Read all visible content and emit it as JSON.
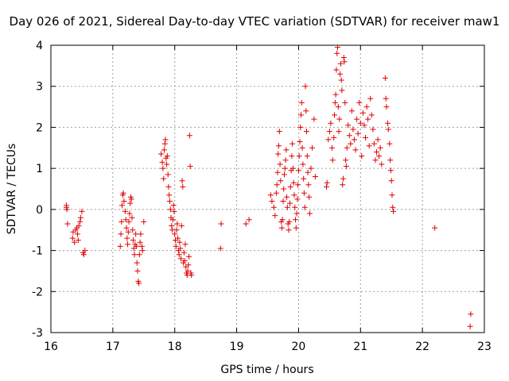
{
  "chart_data": {
    "type": "scatter",
    "title": "Day 026 of 2021, Sidereal Day-to-day VTEC variation (SDTVAR) for receiver maw1",
    "xlabel": "GPS time / hours",
    "ylabel": "SDTVAR / TECUs",
    "xlim": [
      16,
      23
    ],
    "ylim": [
      -3,
      4
    ],
    "xticks": [
      16,
      17,
      18,
      19,
      20,
      21,
      22,
      23
    ],
    "yticks": [
      -3,
      -2,
      -1,
      0,
      1,
      2,
      3,
      4
    ],
    "grid": true,
    "marker": "+",
    "marker_color": "#e00000",
    "series": [
      {
        "name": "SDTVAR",
        "points": [
          [
            16.25,
            0.05
          ],
          [
            16.26,
            0.0
          ],
          [
            16.27,
            -0.35
          ],
          [
            16.25,
            0.1
          ],
          [
            16.35,
            -0.7
          ],
          [
            16.36,
            -0.55
          ],
          [
            16.38,
            -0.8
          ],
          [
            16.4,
            -0.5
          ],
          [
            16.42,
            -0.45
          ],
          [
            16.43,
            -0.6
          ],
          [
            16.44,
            -0.75
          ],
          [
            16.45,
            -0.4
          ],
          [
            16.47,
            -0.3
          ],
          [
            16.48,
            -0.2
          ],
          [
            16.5,
            -0.05
          ],
          [
            16.52,
            -1.05
          ],
          [
            16.53,
            -1.1
          ],
          [
            16.55,
            -1.0
          ],
          [
            17.12,
            -0.9
          ],
          [
            17.13,
            -0.6
          ],
          [
            17.14,
            -0.3
          ],
          [
            17.15,
            0.1
          ],
          [
            17.16,
            0.35
          ],
          [
            17.17,
            0.4
          ],
          [
            17.18,
            0.2
          ],
          [
            17.2,
            -0.05
          ],
          [
            17.21,
            -0.25
          ],
          [
            17.22,
            -0.45
          ],
          [
            17.23,
            -0.7
          ],
          [
            17.24,
            -0.85
          ],
          [
            17.25,
            -0.55
          ],
          [
            17.26,
            -0.3
          ],
          [
            17.27,
            -0.1
          ],
          [
            17.28,
            0.15
          ],
          [
            17.29,
            0.3
          ],
          [
            17.3,
            0.25
          ],
          [
            17.31,
            -0.2
          ],
          [
            17.32,
            -0.5
          ],
          [
            17.33,
            -0.75
          ],
          [
            17.34,
            -0.95
          ],
          [
            17.35,
            -1.1
          ],
          [
            17.36,
            -0.85
          ],
          [
            17.37,
            -0.6
          ],
          [
            17.38,
            -0.9
          ],
          [
            17.39,
            -1.3
          ],
          [
            17.4,
            -1.5
          ],
          [
            17.41,
            -1.75
          ],
          [
            17.42,
            -1.8
          ],
          [
            17.43,
            -1.1
          ],
          [
            17.44,
            -0.8
          ],
          [
            17.45,
            -0.6
          ],
          [
            17.47,
            -0.9
          ],
          [
            17.48,
            -1.0
          ],
          [
            17.5,
            -0.3
          ],
          [
            17.78,
            1.35
          ],
          [
            17.8,
            1.15
          ],
          [
            17.81,
            1.0
          ],
          [
            17.82,
            0.75
          ],
          [
            17.83,
            1.45
          ],
          [
            17.84,
            1.6
          ],
          [
            17.85,
            1.7
          ],
          [
            17.86,
            1.25
          ],
          [
            17.87,
            1.1
          ],
          [
            17.88,
            1.3
          ],
          [
            17.89,
            0.85
          ],
          [
            17.9,
            0.55
          ],
          [
            17.91,
            0.35
          ],
          [
            17.92,
            0.2
          ],
          [
            17.93,
            0.0
          ],
          [
            17.94,
            -0.2
          ],
          [
            17.95,
            -0.4
          ],
          [
            17.96,
            -0.5
          ],
          [
            17.97,
            -0.25
          ],
          [
            17.98,
            0.1
          ],
          [
            17.99,
            -0.05
          ],
          [
            18.0,
            -0.6
          ],
          [
            18.01,
            -0.75
          ],
          [
            18.02,
            -0.9
          ],
          [
            18.03,
            -0.5
          ],
          [
            18.04,
            -0.35
          ],
          [
            18.05,
            -0.7
          ],
          [
            18.06,
            -1.0
          ],
          [
            18.07,
            -1.1
          ],
          [
            18.08,
            -0.8
          ],
          [
            18.09,
            -0.95
          ],
          [
            18.1,
            -1.2
          ],
          [
            18.11,
            -0.4
          ],
          [
            18.12,
            0.7
          ],
          [
            18.13,
            0.55
          ],
          [
            18.14,
            -1.3
          ],
          [
            18.15,
            -1.05
          ],
          [
            18.16,
            -1.25
          ],
          [
            18.17,
            -0.85
          ],
          [
            18.18,
            -1.4
          ],
          [
            18.19,
            -1.55
          ],
          [
            18.2,
            -1.6
          ],
          [
            18.21,
            -1.5
          ],
          [
            18.22,
            -1.35
          ],
          [
            18.23,
            -1.15
          ],
          [
            18.24,
            1.8
          ],
          [
            18.25,
            1.05
          ],
          [
            18.26,
            -1.55
          ],
          [
            18.27,
            -1.6
          ],
          [
            18.75,
            -0.35
          ],
          [
            18.74,
            -0.95
          ],
          [
            19.15,
            -0.35
          ],
          [
            19.2,
            -0.25
          ],
          [
            19.55,
            0.35
          ],
          [
            19.57,
            0.2
          ],
          [
            19.6,
            0.05
          ],
          [
            19.62,
            -0.15
          ],
          [
            19.64,
            0.4
          ],
          [
            19.65,
            0.6
          ],
          [
            19.66,
            0.9
          ],
          [
            19.67,
            1.35
          ],
          [
            19.68,
            1.55
          ],
          [
            19.69,
            1.9
          ],
          [
            19.7,
            1.1
          ],
          [
            19.71,
            0.7
          ],
          [
            19.72,
            -0.3
          ],
          [
            19.73,
            -0.45
          ],
          [
            19.74,
            -0.25
          ],
          [
            19.75,
            0.2
          ],
          [
            19.76,
            0.5
          ],
          [
            19.77,
            0.85
          ],
          [
            19.78,
            1.0
          ],
          [
            19.79,
            1.2
          ],
          [
            19.8,
            1.45
          ],
          [
            19.81,
            0.3
          ],
          [
            19.82,
            0.05
          ],
          [
            19.83,
            -0.35
          ],
          [
            19.84,
            -0.5
          ],
          [
            19.85,
            -0.3
          ],
          [
            19.86,
            0.15
          ],
          [
            19.87,
            0.55
          ],
          [
            19.88,
            0.95
          ],
          [
            19.89,
            1.3
          ],
          [
            19.9,
            1.6
          ],
          [
            19.91,
            1.0
          ],
          [
            19.92,
            0.65
          ],
          [
            19.93,
            0.35
          ],
          [
            19.94,
            0.05
          ],
          [
            19.95,
            -0.25
          ],
          [
            19.96,
            -0.45
          ],
          [
            19.97,
            -0.1
          ],
          [
            19.98,
            0.25
          ],
          [
            19.99,
            0.6
          ],
          [
            20.0,
            0.95
          ],
          [
            20.01,
            1.3
          ],
          [
            20.02,
            1.65
          ],
          [
            20.03,
            2.0
          ],
          [
            20.04,
            2.3
          ],
          [
            20.05,
            2.6
          ],
          [
            20.06,
            1.5
          ],
          [
            20.07,
            1.1
          ],
          [
            20.08,
            0.75
          ],
          [
            20.09,
            0.4
          ],
          [
            20.1,
            0.05
          ],
          [
            20.11,
            3.0
          ],
          [
            20.12,
            2.4
          ],
          [
            20.13,
            1.9
          ],
          [
            20.14,
            1.3
          ],
          [
            20.15,
            0.9
          ],
          [
            20.16,
            0.6
          ],
          [
            20.17,
            0.3
          ],
          [
            20.18,
            -0.1
          ],
          [
            20.2,
            1.0
          ],
          [
            20.22,
            1.5
          ],
          [
            20.25,
            2.2
          ],
          [
            20.27,
            0.8
          ],
          [
            20.45,
            0.55
          ],
          [
            20.46,
            0.65
          ],
          [
            20.48,
            1.7
          ],
          [
            20.5,
            1.9
          ],
          [
            20.52,
            2.1
          ],
          [
            20.54,
            1.5
          ],
          [
            20.55,
            1.2
          ],
          [
            20.57,
            1.75
          ],
          [
            20.58,
            2.3
          ],
          [
            20.59,
            2.6
          ],
          [
            20.6,
            2.8
          ],
          [
            20.61,
            3.4
          ],
          [
            20.62,
            3.8
          ],
          [
            20.63,
            3.95
          ],
          [
            20.64,
            2.5
          ],
          [
            20.65,
            1.9
          ],
          [
            20.66,
            2.2
          ],
          [
            20.67,
            3.3
          ],
          [
            20.68,
            3.55
          ],
          [
            20.69,
            3.15
          ],
          [
            20.7,
            2.9
          ],
          [
            20.71,
            0.6
          ],
          [
            20.72,
            0.75
          ],
          [
            20.73,
            3.7
          ],
          [
            20.74,
            3.6
          ],
          [
            20.75,
            2.6
          ],
          [
            20.76,
            1.2
          ],
          [
            20.77,
            1.05
          ],
          [
            20.78,
            1.5
          ],
          [
            20.8,
            2.05
          ],
          [
            20.82,
            1.8
          ],
          [
            20.84,
            1.6
          ],
          [
            20.86,
            2.4
          ],
          [
            20.88,
            1.95
          ],
          [
            20.9,
            1.7
          ],
          [
            20.92,
            1.45
          ],
          [
            20.94,
            2.2
          ],
          [
            20.96,
            1.85
          ],
          [
            20.98,
            2.6
          ],
          [
            21.0,
            2.1
          ],
          [
            21.02,
            1.3
          ],
          [
            21.04,
            2.35
          ],
          [
            21.06,
            2.05
          ],
          [
            21.08,
            1.75
          ],
          [
            21.1,
            2.5
          ],
          [
            21.12,
            2.2
          ],
          [
            21.14,
            1.55
          ],
          [
            21.16,
            2.7
          ],
          [
            21.18,
            2.3
          ],
          [
            21.2,
            1.95
          ],
          [
            21.22,
            1.6
          ],
          [
            21.24,
            1.2
          ],
          [
            21.26,
            1.4
          ],
          [
            21.28,
            1.7
          ],
          [
            21.3,
            1.3
          ],
          [
            21.32,
            1.5
          ],
          [
            21.34,
            1.1
          ],
          [
            21.4,
            3.2
          ],
          [
            21.41,
            2.7
          ],
          [
            21.42,
            2.5
          ],
          [
            21.44,
            2.1
          ],
          [
            21.45,
            1.95
          ],
          [
            21.47,
            1.6
          ],
          [
            21.48,
            1.2
          ],
          [
            21.49,
            0.95
          ],
          [
            21.5,
            0.7
          ],
          [
            21.51,
            0.35
          ],
          [
            21.52,
            0.05
          ],
          [
            21.53,
            -0.05
          ],
          [
            22.2,
            -0.45
          ],
          [
            22.78,
            -2.55
          ],
          [
            22.77,
            -2.85
          ]
        ]
      }
    ]
  }
}
